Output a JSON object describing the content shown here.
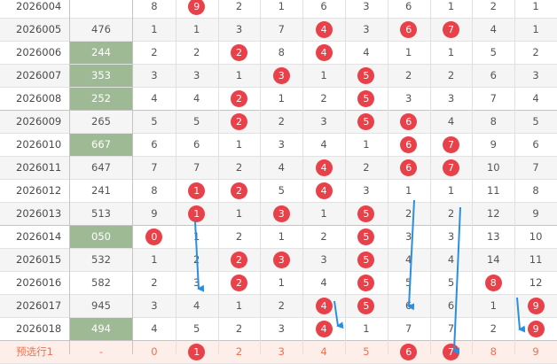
{
  "table": {
    "rows": [
      {
        "period": "2026004",
        "number": "",
        "highlight": false,
        "cells": [
          "8",
          "9",
          "2",
          "1",
          "6",
          "3",
          "6",
          "1",
          "2",
          "1"
        ],
        "balls": [
          false,
          true,
          false,
          false,
          false,
          false,
          false,
          false,
          false,
          false
        ]
      },
      {
        "period": "2026005",
        "number": "476",
        "highlight": false,
        "cells": [
          "1",
          "1",
          "3",
          "7",
          "4",
          "3",
          "6",
          "7",
          "4",
          "1"
        ],
        "balls": [
          false,
          false,
          false,
          false,
          true,
          false,
          true,
          true,
          false,
          false
        ]
      },
      {
        "period": "2026006",
        "number": "244",
        "highlight": true,
        "cells": [
          "2",
          "2",
          "2",
          "8",
          "4",
          "4",
          "1",
          "1",
          "5",
          "2"
        ],
        "balls": [
          false,
          false,
          true,
          false,
          true,
          false,
          false,
          false,
          false,
          false
        ]
      },
      {
        "period": "2026007",
        "number": "353",
        "highlight": true,
        "cells": [
          "3",
          "3",
          "1",
          "3",
          "1",
          "5",
          "2",
          "2",
          "6",
          "3"
        ],
        "balls": [
          false,
          false,
          false,
          true,
          false,
          true,
          false,
          false,
          false,
          false
        ]
      },
      {
        "period": "2026008",
        "number": "252",
        "highlight": true,
        "cells": [
          "4",
          "4",
          "2",
          "1",
          "2",
          "5",
          "3",
          "3",
          "7",
          "4"
        ],
        "balls": [
          false,
          false,
          true,
          false,
          false,
          true,
          false,
          false,
          false,
          false
        ]
      },
      {
        "period": "2026009",
        "number": "265",
        "highlight": false,
        "cells": [
          "5",
          "5",
          "2",
          "2",
          "3",
          "5",
          "6",
          "4",
          "8",
          "5"
        ],
        "balls": [
          false,
          false,
          true,
          false,
          false,
          true,
          true,
          false,
          false,
          false
        ]
      },
      {
        "period": "2026010",
        "number": "667",
        "highlight": true,
        "cells": [
          "6",
          "6",
          "1",
          "3",
          "4",
          "1",
          "6",
          "7",
          "9",
          "6"
        ],
        "balls": [
          false,
          false,
          false,
          false,
          false,
          false,
          true,
          true,
          false,
          false
        ]
      },
      {
        "period": "2026011",
        "number": "647",
        "highlight": false,
        "cells": [
          "7",
          "7",
          "2",
          "4",
          "4",
          "2",
          "6",
          "7",
          "10",
          "7"
        ],
        "balls": [
          false,
          false,
          false,
          false,
          true,
          false,
          true,
          true,
          false,
          false
        ]
      },
      {
        "period": "2026012",
        "number": "241",
        "highlight": false,
        "cells": [
          "8",
          "1",
          "2",
          "5",
          "4",
          "3",
          "1",
          "1",
          "11",
          "8"
        ],
        "balls": [
          false,
          true,
          true,
          false,
          true,
          false,
          false,
          false,
          false,
          false
        ]
      },
      {
        "period": "2026013",
        "number": "513",
        "highlight": false,
        "cells": [
          "9",
          "1",
          "1",
          "3",
          "1",
          "5",
          "2",
          "2",
          "12",
          "9"
        ],
        "balls": [
          false,
          true,
          false,
          true,
          false,
          true,
          false,
          false,
          false,
          false
        ]
      },
      {
        "period": "2026014",
        "number": "050",
        "highlight": true,
        "cells": [
          "0",
          "1",
          "2",
          "1",
          "2",
          "5",
          "3",
          "3",
          "13",
          "10"
        ],
        "balls": [
          true,
          false,
          false,
          false,
          false,
          true,
          false,
          false,
          false,
          false
        ]
      },
      {
        "period": "2026015",
        "number": "532",
        "highlight": false,
        "cells": [
          "1",
          "2",
          "2",
          "3",
          "3",
          "5",
          "4",
          "4",
          "14",
          "11"
        ],
        "balls": [
          false,
          false,
          true,
          true,
          false,
          true,
          false,
          false,
          false,
          false
        ]
      },
      {
        "period": "2026016",
        "number": "582",
        "highlight": false,
        "cells": [
          "2",
          "3",
          "2",
          "1",
          "4",
          "5",
          "5",
          "5",
          "8",
          "12"
        ],
        "balls": [
          false,
          false,
          true,
          false,
          false,
          true,
          false,
          false,
          true,
          false
        ]
      },
      {
        "period": "2026017",
        "number": "945",
        "highlight": false,
        "cells": [
          "3",
          "4",
          "1",
          "2",
          "4",
          "5",
          "6",
          "6",
          "1",
          "9"
        ],
        "balls": [
          false,
          false,
          false,
          false,
          true,
          true,
          false,
          false,
          false,
          true
        ]
      },
      {
        "period": "2026018",
        "number": "494",
        "highlight": true,
        "cells": [
          "4",
          "5",
          "2",
          "3",
          "4",
          "1",
          "7",
          "7",
          "2",
          "9"
        ],
        "balls": [
          false,
          false,
          false,
          false,
          true,
          false,
          false,
          false,
          false,
          true
        ]
      }
    ],
    "predict": {
      "label": "预选行1",
      "number": "-",
      "cells": [
        "0",
        "1",
        "2",
        "3",
        "4",
        "5",
        "6",
        "7",
        "8",
        "9"
      ],
      "balls": [
        false,
        true,
        false,
        false,
        false,
        false,
        true,
        true,
        false,
        false
      ]
    }
  },
  "colors": {
    "ball": "#e8414a",
    "highlight_cell": "#9dba94",
    "arrow": "#2b8fe0",
    "predict_row": "#fdeee9",
    "predict_text": "#f07050"
  }
}
